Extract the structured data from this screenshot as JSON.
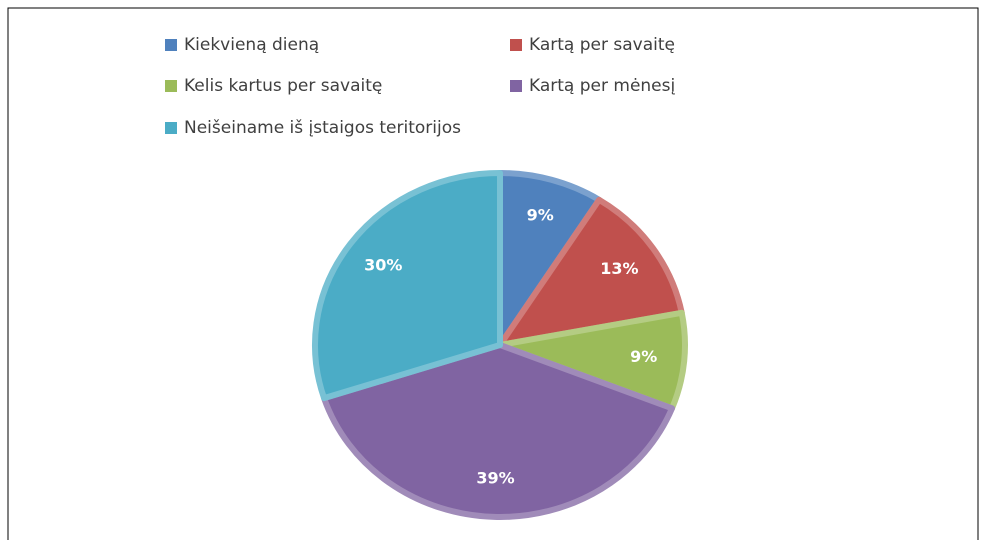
{
  "chart_data": {
    "type": "pie",
    "categories": [
      "Kiekvieną dieną",
      "Kartą per savaitę",
      "Kelis kartus per savaitę",
      "Kartą per mėnesį",
      "Neišeiname iš įstaigos teritorijos"
    ],
    "values": [
      9,
      13,
      9,
      39,
      30
    ],
    "value_labels": [
      "9%",
      "13%",
      "9%",
      "39%",
      "30%"
    ],
    "colors": [
      "#4f81bd",
      "#c0504d",
      "#9bbb59",
      "#8064a2",
      "#4bacc6"
    ],
    "legend": "top"
  }
}
